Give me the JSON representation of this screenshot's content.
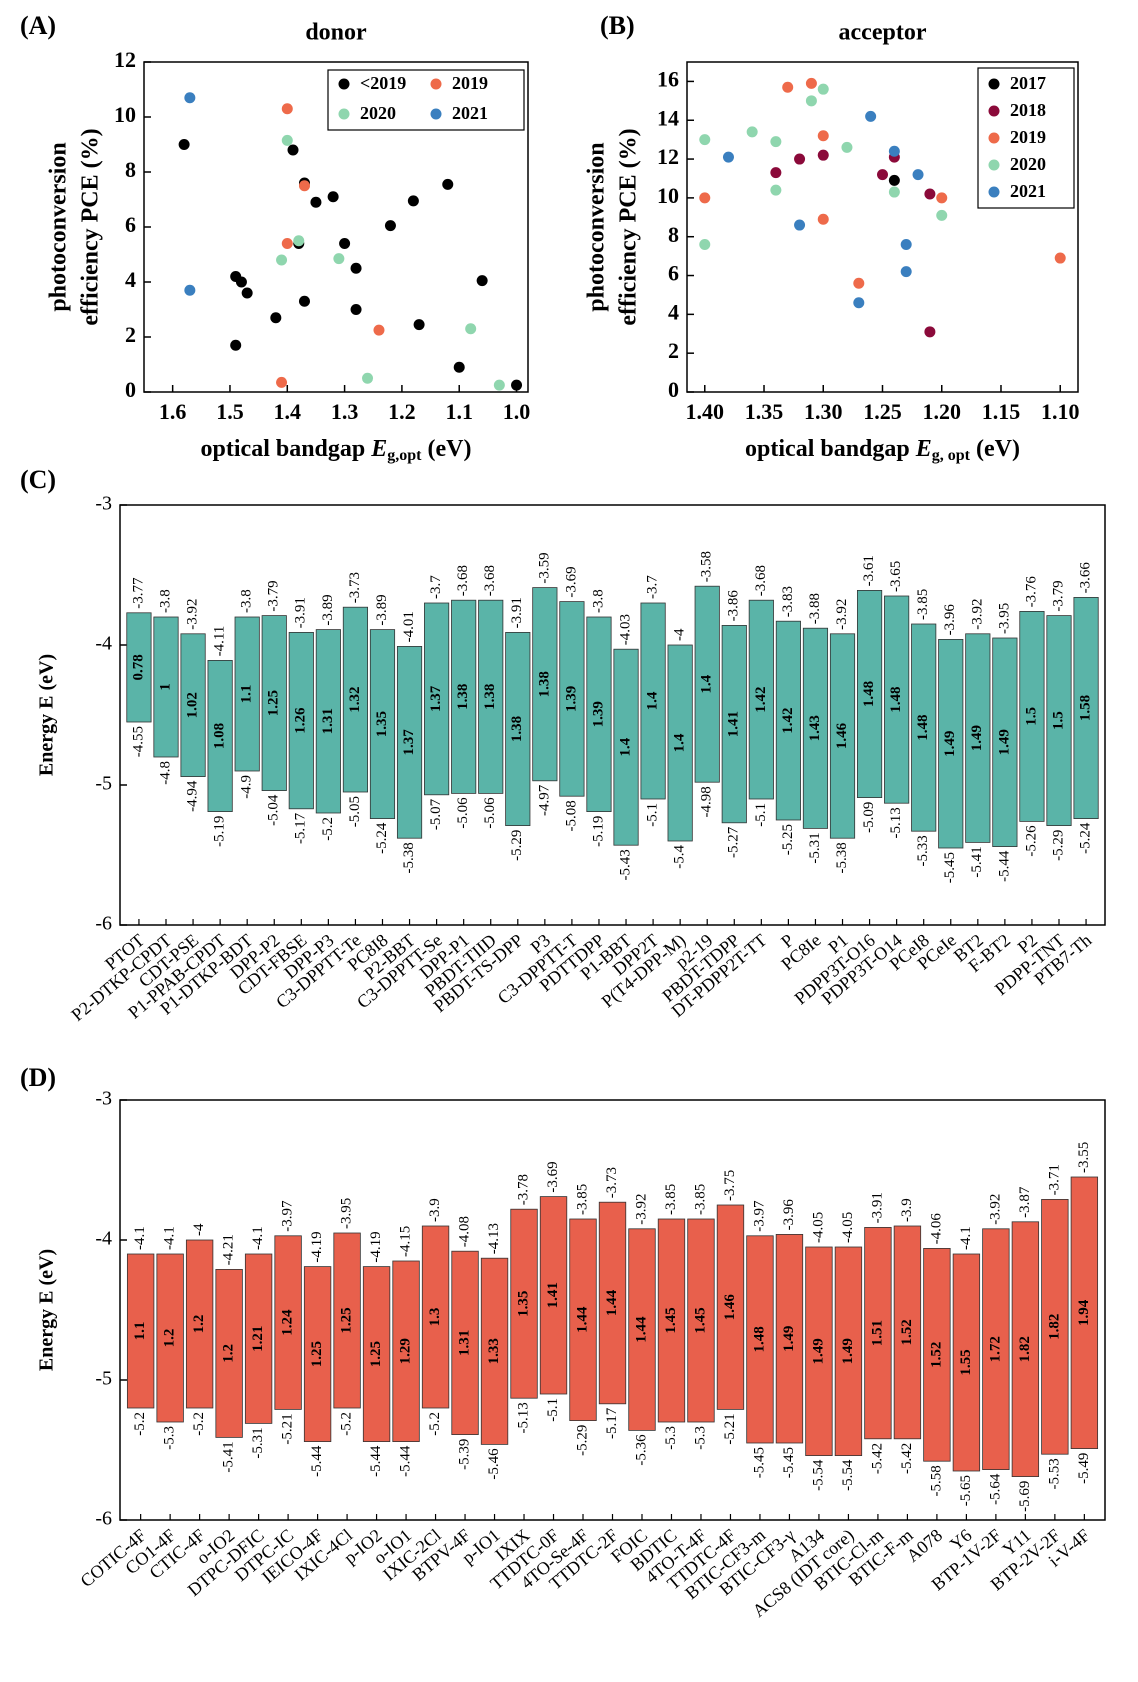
{
  "panel_labels": {
    "a": "(A)",
    "b": "(B)",
    "c": "(C)",
    "d": "(D)"
  },
  "colors": {
    "pre2019": "#000000",
    "y2017": "#000000",
    "y2018": "#8b0a3a",
    "y2019": "#ee6a4a",
    "y2020": "#8fd6ae",
    "y2021": "#3a7fbf",
    "donor_bar": "#5ab4a8",
    "acceptor_bar": "#e8604c"
  },
  "chart_data": [
    {
      "id": "A",
      "type": "scatter",
      "title": "donor",
      "xlabel_main": "optical bandgap ",
      "xlabel_italic": "E",
      "xlabel_sub": "g,opt",
      "xlabel_unit": " (eV)",
      "ylabel_line1": "photoconversion",
      "ylabel_line2": "efficiency PCE (%)",
      "xlim": [
        1.65,
        0.98
      ],
      "ylim": [
        0,
        12
      ],
      "xticks": [
        1.6,
        1.5,
        1.4,
        1.3,
        1.2,
        1.1,
        1.0
      ],
      "xtick_labels": [
        "1.6",
        "1.5",
        "1.4",
        "1.3",
        "1.2",
        "1.1",
        "1.0"
      ],
      "yticks": [
        0,
        2,
        4,
        6,
        8,
        10,
        12
      ],
      "ytick_labels": [
        "0",
        "2",
        "4",
        "6",
        "8",
        "10",
        "12"
      ],
      "legend_position": "top-right",
      "series": [
        {
          "name": "<2019",
          "color_key": "pre2019",
          "points": [
            [
              1.58,
              9.0
            ],
            [
              1.49,
              4.2
            ],
            [
              1.48,
              4.0
            ],
            [
              1.47,
              3.6
            ],
            [
              1.49,
              1.7
            ],
            [
              1.42,
              2.7
            ],
            [
              1.39,
              8.8
            ],
            [
              1.38,
              5.4
            ],
            [
              1.37,
              7.6
            ],
            [
              1.37,
              3.3
            ],
            [
              1.35,
              6.9
            ],
            [
              1.32,
              7.1
            ],
            [
              1.3,
              5.4
            ],
            [
              1.28,
              4.5
            ],
            [
              1.28,
              3.0
            ],
            [
              1.22,
              6.05
            ],
            [
              1.18,
              6.95
            ],
            [
              1.17,
              2.45
            ],
            [
              1.12,
              7.55
            ],
            [
              1.1,
              0.9
            ],
            [
              1.06,
              4.05
            ],
            [
              1.0,
              0.25
            ]
          ]
        },
        {
          "name": "2019",
          "color_key": "y2019",
          "points": [
            [
              1.4,
              10.3
            ],
            [
              1.4,
              5.4
            ],
            [
              1.37,
              7.5
            ],
            [
              1.41,
              0.35
            ],
            [
              1.24,
              2.25
            ]
          ]
        },
        {
          "name": "2020",
          "color_key": "y2020",
          "points": [
            [
              1.4,
              9.15
            ],
            [
              1.38,
              5.5
            ],
            [
              1.41,
              4.8
            ],
            [
              1.31,
              4.85
            ],
            [
              1.26,
              0.5
            ],
            [
              1.08,
              2.3
            ],
            [
              1.03,
              0.25
            ]
          ]
        },
        {
          "name": "2021",
          "color_key": "y2021",
          "points": [
            [
              1.57,
              10.7
            ],
            [
              1.57,
              3.7
            ]
          ]
        }
      ]
    },
    {
      "id": "B",
      "type": "scatter",
      "title": "acceptor",
      "xlabel_main": "optical bandgap ",
      "xlabel_italic": "E",
      "xlabel_sub": "g, opt",
      "xlabel_unit": " (eV)",
      "ylabel_line1": "photoconversion",
      "ylabel_line2": "efficiency PCE (%)",
      "xlim": [
        1.415,
        1.085
      ],
      "ylim": [
        0,
        17
      ],
      "xticks": [
        1.4,
        1.35,
        1.3,
        1.25,
        1.2,
        1.15,
        1.1
      ],
      "xtick_labels": [
        "1.40",
        "1.35",
        "1.30",
        "1.25",
        "1.20",
        "1.15",
        "1.10"
      ],
      "yticks": [
        0,
        2,
        4,
        6,
        8,
        10,
        12,
        14,
        16
      ],
      "ytick_labels": [
        "0",
        "2",
        "4",
        "6",
        "8",
        "10",
        "12",
        "14",
        "16"
      ],
      "legend_position": "top-right",
      "series": [
        {
          "name": "2017",
          "color_key": "y2017",
          "points": [
            [
              1.24,
              10.9
            ]
          ]
        },
        {
          "name": "2018",
          "color_key": "y2018",
          "points": [
            [
              1.34,
              11.3
            ],
            [
              1.32,
              12.0
            ],
            [
              1.3,
              12.2
            ],
            [
              1.25,
              11.2
            ],
            [
              1.24,
              12.1
            ],
            [
              1.21,
              10.2
            ],
            [
              1.21,
              3.1
            ]
          ]
        },
        {
          "name": "2019",
          "color_key": "y2019",
          "points": [
            [
              1.4,
              10.0
            ],
            [
              1.33,
              15.7
            ],
            [
              1.31,
              15.9
            ],
            [
              1.3,
              13.2
            ],
            [
              1.3,
              8.9
            ],
            [
              1.27,
              5.6
            ],
            [
              1.2,
              10.0
            ],
            [
              1.1,
              6.9
            ]
          ]
        },
        {
          "name": "2020",
          "color_key": "y2020",
          "points": [
            [
              1.4,
              13.0
            ],
            [
              1.4,
              7.6
            ],
            [
              1.36,
              13.4
            ],
            [
              1.34,
              12.9
            ],
            [
              1.34,
              10.4
            ],
            [
              1.3,
              15.6
            ],
            [
              1.31,
              15.0
            ],
            [
              1.28,
              12.6
            ],
            [
              1.24,
              10.3
            ],
            [
              1.2,
              9.1
            ]
          ]
        },
        {
          "name": "2021",
          "color_key": "y2021",
          "points": [
            [
              1.38,
              12.1
            ],
            [
              1.32,
              8.6
            ],
            [
              1.26,
              14.2
            ],
            [
              1.24,
              12.4
            ],
            [
              1.23,
              7.6
            ],
            [
              1.23,
              6.2
            ],
            [
              1.27,
              4.6
            ],
            [
              1.22,
              11.2
            ]
          ]
        }
      ]
    },
    {
      "id": "C",
      "type": "bar",
      "color_key": "donor_bar",
      "ylabel": "Energy E (eV)",
      "ylim": [
        -6,
        -3
      ],
      "yticks": [
        -6,
        -5,
        -4,
        -3
      ],
      "ytick_labels": [
        "-6",
        "-5",
        "-4",
        "-3"
      ],
      "categories": [
        "PTOT",
        "P2-DTKP-CPDT",
        "CDT-PSE",
        "P1-PPAB-CPDT",
        "P1-DTKP-BDT",
        "DPP-P2",
        "CDT-FBSE",
        "DPP-P3",
        "C3-DPPTT-Te",
        "PC8I8",
        "P2-BBT",
        "C3-DPPTT-Se",
        "DPP-P1",
        "PBDT-TIID",
        "PBDT-TS-DPP",
        "P3",
        "C3-DPPTT-T",
        "PDTTDPP",
        "P1-BBT",
        "DPP2T",
        "P(T4-DPP-M)",
        "p2-19",
        "PBDT-TDPP",
        "DT-PDPP2T-TT",
        "P",
        "PC8Ie",
        "P1",
        "PDPP3T-O16",
        "PDPP3T-O14",
        "PCeI8",
        "PCeIe",
        "BT2",
        "F-BT2",
        "P2",
        "PDPP-TNT",
        "PTB7-Th"
      ],
      "top_values": [
        -3.77,
        -3.8,
        -3.92,
        -4.11,
        -3.8,
        -3.79,
        -3.91,
        -3.89,
        -3.73,
        -3.89,
        -4.01,
        -3.7,
        -3.68,
        -3.68,
        -3.91,
        -3.59,
        -3.69,
        -3.8,
        -4.03,
        -3.7,
        -4,
        -3.58,
        -3.86,
        -3.68,
        -3.83,
        -3.88,
        -3.92,
        -3.61,
        -3.65,
        -3.85,
        -3.96,
        -3.92,
        -3.95,
        -3.76,
        -3.79,
        -3.66
      ],
      "top_labels": [
        "-3.77",
        "-3.8",
        "-3.92",
        "-4.11",
        "-3.8",
        "-3.79",
        "-3.91",
        "-3.89",
        "-3.73",
        "-3.89",
        "-4.01",
        "-3.7",
        "-3.68",
        "-3.68",
        "-3.91",
        "-3.59",
        "-3.69",
        "-3.8",
        "-4.03",
        "-3.7",
        "-4",
        "-3.58",
        "-3.86",
        "-3.68",
        "-3.83",
        "-3.88",
        "-3.92",
        "-3.61",
        "-3.65",
        "-3.85",
        "-3.96",
        "-3.92",
        "-3.95",
        "-3.76",
        "-3.79",
        "-3.66"
      ],
      "bottom_values": [
        -4.55,
        -4.8,
        -4.94,
        -5.19,
        -4.9,
        -5.04,
        -5.17,
        -5.2,
        -5.05,
        -5.24,
        -5.38,
        -5.07,
        -5.06,
        -5.06,
        -5.29,
        -4.97,
        -5.08,
        -5.19,
        -5.43,
        -5.1,
        -5.4,
        -4.98,
        -5.27,
        -5.1,
        -5.25,
        -5.31,
        -5.38,
        -5.09,
        -5.13,
        -5.33,
        -5.45,
        -5.41,
        -5.44,
        -5.26,
        -5.29,
        -5.24
      ],
      "bottom_labels": [
        "-4.55",
        "-4.8",
        "-4.94",
        "-5.19",
        "-4.9",
        "-5.04",
        "-5.17",
        "-5.2",
        "-5.05",
        "-5.24",
        "-5.38",
        "-5.07",
        "-5.06",
        "-5.06",
        "-5.29",
        "-4.97",
        "-5.08",
        "-5.19",
        "-5.43",
        "-5.1",
        "-5.4",
        "-4.98",
        "-5.27",
        "-5.1",
        "-5.25",
        "-5.31",
        "-5.38",
        "-5.09",
        "-5.13",
        "-5.33",
        "-5.45",
        "-5.41",
        "-5.44",
        "-5.26",
        "-5.29",
        "-5.24"
      ],
      "gap_labels": [
        "0.78",
        "1",
        "1.02",
        "1.08",
        "1.1",
        "1.25",
        "1.26",
        "1.31",
        "1.32",
        "1.35",
        "1.37",
        "1.37",
        "1.38",
        "1.38",
        "1.38",
        "1.38",
        "1.39",
        "1.39",
        "1.4",
        "1.4",
        "1.4",
        "1.4",
        "1.41",
        "1.42",
        "1.42",
        "1.43",
        "1.46",
        "1.48",
        "1.48",
        "1.48",
        "1.49",
        "1.49",
        "1.49",
        "1.5",
        "1.5",
        "1.58"
      ]
    },
    {
      "id": "D",
      "type": "bar",
      "color_key": "acceptor_bar",
      "ylabel": "Energy E (eV)",
      "ylim": [
        -6,
        -3
      ],
      "yticks": [
        -6,
        -5,
        -4,
        -3
      ],
      "ytick_labels": [
        "-6",
        "-5",
        "-4",
        "-3"
      ],
      "categories": [
        "COTIC-4F",
        "CO1-4F",
        "CTIC-4F",
        "o-IO2",
        "DTPC-DFIC",
        "DTPC-IC",
        "IEICO-4F",
        "IXIC-4Cl",
        "p-IO2",
        "o-IO1",
        "IXIC-2Cl",
        "BTPV-4F",
        "p-IO1",
        "IXIX",
        "TTDTC-0F",
        "4TO-Se-4F",
        "TTDTC-2F",
        "FOIC",
        "BDTIC",
        "4TO-T-4F",
        "TTDTC-4F",
        "BTIC-CF3-m",
        "BTIC-CF3-γ",
        "A134",
        "ACS8 (IDT core)",
        "BTIC-Cl-m",
        "BTIC-F-m",
        "A078",
        "Y6",
        "BTP-1V-2F",
        "Y11",
        "BTP-2V-2F",
        "i-V-4F"
      ],
      "top_values": [
        -4.1,
        -4.1,
        -4,
        -4.21,
        -4.1,
        -3.97,
        -4.19,
        -3.95,
        -4.19,
        -4.15,
        -3.9,
        -4.08,
        -4.13,
        -3.78,
        -3.69,
        -3.85,
        -3.73,
        -3.92,
        -3.85,
        -3.85,
        -3.75,
        -3.97,
        -3.96,
        -4.05,
        -4.05,
        -3.91,
        -3.9,
        -4.06,
        -4.1,
        -3.92,
        -3.87,
        -3.71,
        -3.55
      ],
      "top_labels": [
        "-4.1",
        "-4.1",
        "-4",
        "-4.21",
        "-4.1",
        "-3.97",
        "-4.19",
        "-3.95",
        "-4.19",
        "-4.15",
        "-3.9",
        "-4.08",
        "-4.13",
        "-3.78",
        "-3.69",
        "-3.85",
        "-3.73",
        "-3.92",
        "-3.85",
        "-3.85",
        "-3.75",
        "-3.97",
        "-3.96",
        "-4.05",
        "-4.05",
        "-3.91",
        "-3.9",
        "-4.06",
        "-4.1",
        "-3.92",
        "-3.87",
        "-3.71",
        "-3.55"
      ],
      "bottom_values": [
        -5.2,
        -5.3,
        -5.2,
        -5.41,
        -5.31,
        -5.21,
        -5.44,
        -5.2,
        -5.44,
        -5.44,
        -5.2,
        -5.39,
        -5.46,
        -5.13,
        -5.1,
        -5.29,
        -5.17,
        -5.36,
        -5.3,
        -5.3,
        -5.21,
        -5.45,
        -5.45,
        -5.54,
        -5.54,
        -5.42,
        -5.42,
        -5.58,
        -5.65,
        -5.64,
        -5.69,
        -5.53,
        -5.49
      ],
      "bottom_labels": [
        "-5.2",
        "-5.3",
        "-5.2",
        "-5.41",
        "-5.31",
        "-5.21",
        "-5.44",
        "-5.2",
        "-5.44",
        "-5.44",
        "-5.2",
        "-5.39",
        "-5.46",
        "-5.13",
        "-5.1",
        "-5.29",
        "-5.17",
        "-5.36",
        "-5.3",
        "-5.3",
        "-5.21",
        "-5.45",
        "-5.45",
        "-5.54",
        "-5.54",
        "-5.42",
        "-5.42",
        "-5.58",
        "-5.65",
        "-5.64",
        "-5.69",
        "-5.53",
        "-5.49"
      ],
      "gap_labels": [
        "1.1",
        "1.2",
        "1.2",
        "1.2",
        "1.21",
        "1.24",
        "1.25",
        "1.25",
        "1.25",
        "1.29",
        "1.3",
        "1.31",
        "1.33",
        "1.35",
        "1.41",
        "1.44",
        "1.44",
        "1.44",
        "1.45",
        "1.45",
        "1.46",
        "1.48",
        "1.49",
        "1.49",
        "1.49",
        "1.51",
        "1.52",
        "1.52",
        "1.55",
        "1.72",
        "1.82",
        "1.82",
        "1.94"
      ]
    }
  ]
}
